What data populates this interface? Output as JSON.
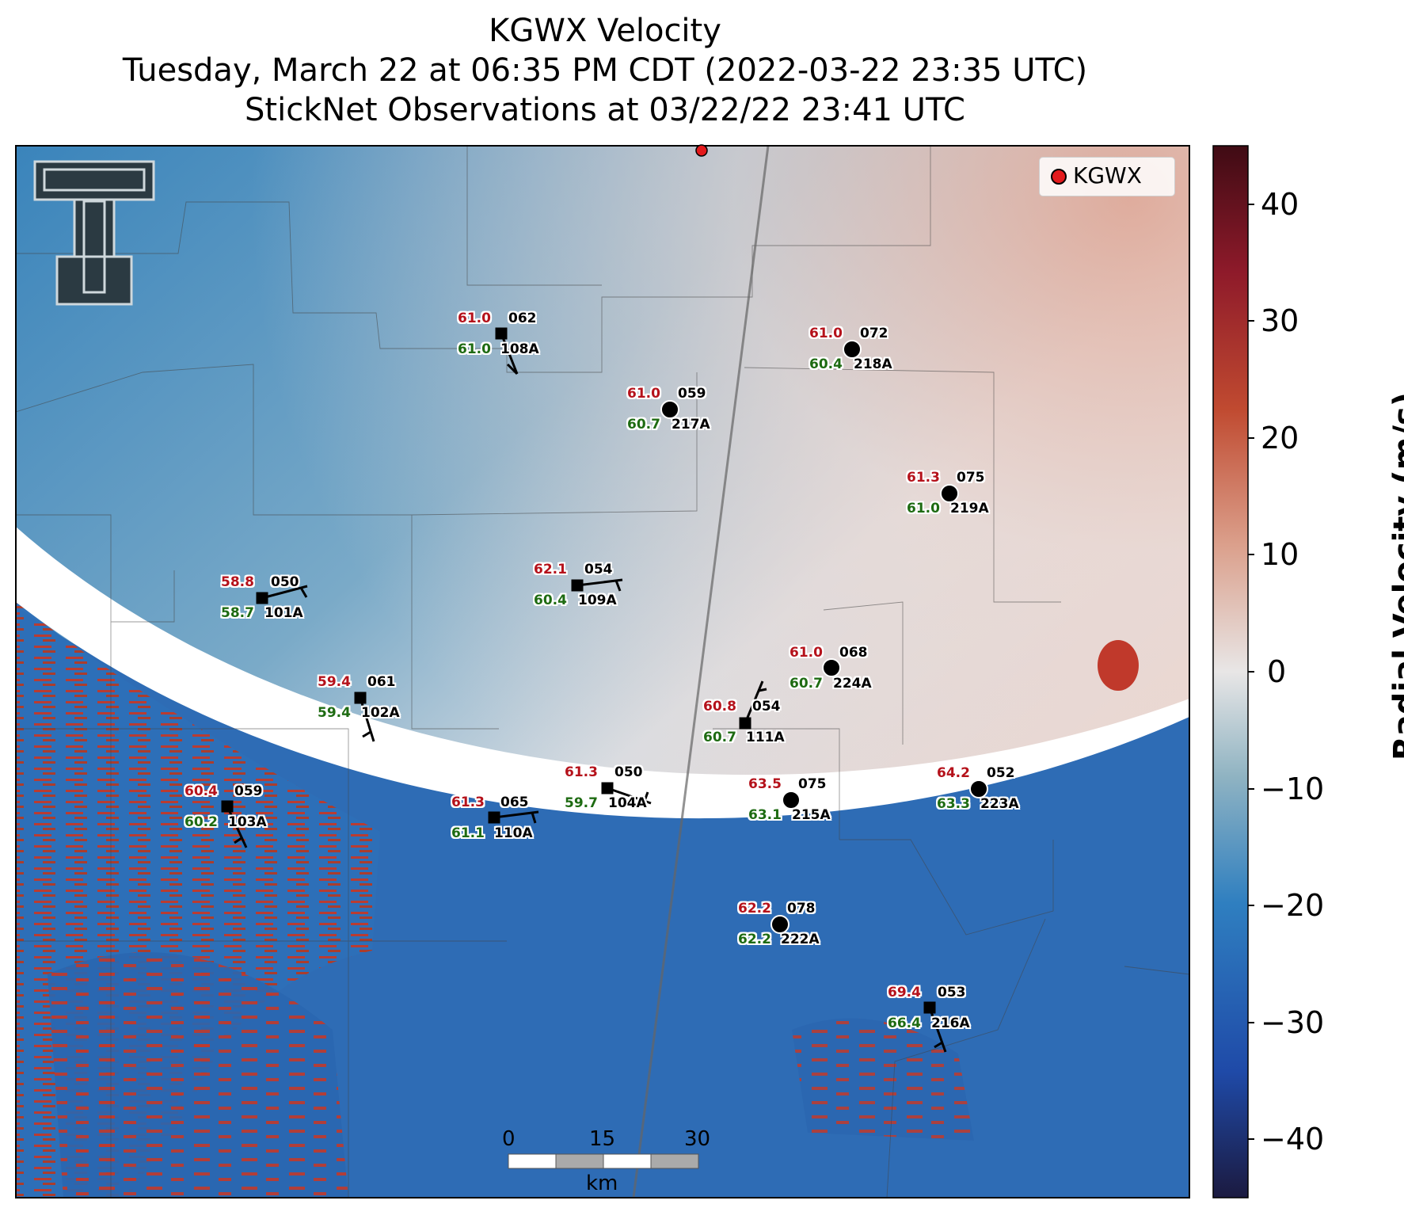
{
  "title": {
    "line1": "KGWX Velocity",
    "line2": "Tuesday, March 22 at 06:35 PM CDT (2022-03-22 23:35 UTC)",
    "line3": "StickNet Observations at 03/22/22 23:41 UTC"
  },
  "legend": {
    "label": "KGWX",
    "color": "#e31a1c"
  },
  "colorbar": {
    "label": "Radial Velocity (m/s)",
    "ticks": [
      "40",
      "30",
      "20",
      "10",
      "0",
      "−10",
      "−20",
      "−30",
      "−40"
    ],
    "range": [
      -45,
      45
    ],
    "colors": [
      "#1b1a40",
      "#1f4aa8",
      "#2f7fc0",
      "#8fb3c2",
      "#e8e6e6",
      "#dba08c",
      "#c04a30",
      "#8e1a2a",
      "#3f0b14"
    ]
  },
  "scalebar": {
    "ticks": [
      "0",
      "15",
      "30"
    ],
    "unit": "km"
  },
  "stations": [
    {
      "id": "108A",
      "top": "61.0",
      "bottom": "61.0",
      "dir": "062",
      "marker": "square"
    },
    {
      "id": "218A",
      "top": "61.0",
      "bottom": "60.4",
      "dir": "072",
      "marker": "circle"
    },
    {
      "id": "217A",
      "top": "61.0",
      "bottom": "60.7",
      "dir": "059",
      "marker": "circle"
    },
    {
      "id": "219A",
      "top": "61.3",
      "bottom": "61.0",
      "dir": "075",
      "marker": "circle"
    },
    {
      "id": "101A",
      "top": "58.8",
      "bottom": "58.7",
      "dir": "050",
      "marker": "square"
    },
    {
      "id": "109A",
      "top": "62.1",
      "bottom": "60.4",
      "dir": "054",
      "marker": "square"
    },
    {
      "id": "224A",
      "top": "61.0",
      "bottom": "60.7",
      "dir": "068",
      "marker": "circle"
    },
    {
      "id": "102A",
      "top": "59.4",
      "bottom": "59.4",
      "dir": "061",
      "marker": "square"
    },
    {
      "id": "111A",
      "top": "60.8",
      "bottom": "60.7",
      "dir": "054",
      "marker": "square"
    },
    {
      "id": "104A",
      "top": "61.3",
      "bottom": "59.7",
      "dir": "050",
      "marker": "square"
    },
    {
      "id": "215A",
      "top": "63.5",
      "bottom": "63.1",
      "dir": "075",
      "marker": "circle"
    },
    {
      "id": "223A",
      "top": "64.2",
      "bottom": "63.3",
      "dir": "052",
      "marker": "circle"
    },
    {
      "id": "103A",
      "top": "60.4",
      "bottom": "60.2",
      "dir": "059",
      "marker": "square"
    },
    {
      "id": "110A",
      "top": "61.3",
      "bottom": "61.1",
      "dir": "065",
      "marker": "square"
    },
    {
      "id": "222A",
      "top": "62.2",
      "bottom": "62.2",
      "dir": "078",
      "marker": "circle"
    },
    {
      "id": "216A",
      "top": "69.4",
      "bottom": "66.4",
      "dir": "053",
      "marker": "square"
    }
  ]
}
